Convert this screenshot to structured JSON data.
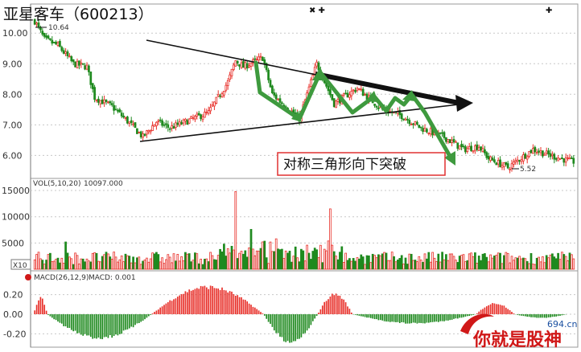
{
  "title": "亚星客车（600213）",
  "colors": {
    "up": "#e8302a",
    "down": "#1f8a1f",
    "accent_arrow": "#3e9a3e",
    "annotation_border": "#e03030",
    "brand_red": "#d01818"
  },
  "price_panel": {
    "yticks": [
      "10.00",
      "9.00",
      "8.00",
      "7.00",
      "6.00"
    ],
    "high_label": "10.64",
    "low_label": "5.52"
  },
  "volume_panel": {
    "header": "VOL(5,10,20)",
    "header_value": "10097.000",
    "yticks": [
      "15000",
      "10000",
      "5000"
    ],
    "unit_label": "X10"
  },
  "macd_panel": {
    "header": "MACD(26,12,9)",
    "header_value": "MACD: 0.001",
    "yticks": [
      "0.20",
      "0.00",
      "-0.20"
    ]
  },
  "annotation": {
    "text": "对称三角形向下突破"
  },
  "watermark": {
    "text": "你就是股神",
    "domain": "694.cn"
  },
  "chart_data": [
    {
      "type": "candlestick",
      "title": "亚星客车（600213）",
      "ylim": [
        5.3,
        10.9
      ],
      "y_ticks": [
        10.0,
        9.0,
        8.0,
        7.0,
        6.0
      ],
      "annotations": [
        {
          "text": "10.64",
          "point": [
            2,
            10.64
          ]
        },
        {
          "text": "5.52",
          "point": [
            173,
            5.52
          ]
        },
        {
          "text": "对称三角形向下突破"
        }
      ],
      "close_points": [
        [
          0,
          10.4
        ],
        [
          5,
          9.8
        ],
        [
          12,
          9.6
        ],
        [
          20,
          9.0
        ],
        [
          27,
          8.9
        ],
        [
          31,
          7.9
        ],
        [
          40,
          7.6
        ],
        [
          50,
          7.0
        ],
        [
          56,
          6.6
        ],
        [
          63,
          7.1
        ],
        [
          70,
          6.9
        ],
        [
          78,
          7.1
        ],
        [
          90,
          7.4
        ],
        [
          100,
          8.4
        ],
        [
          104,
          9.1
        ],
        [
          108,
          8.9
        ],
        [
          118,
          9.2
        ],
        [
          123,
          8.0
        ],
        [
          137,
          7.2
        ],
        [
          146,
          9.0
        ],
        [
          155,
          7.7
        ],
        [
          167,
          8.2
        ],
        [
          180,
          7.5
        ],
        [
          190,
          7.3
        ],
        [
          200,
          6.9
        ],
        [
          212,
          6.6
        ],
        [
          222,
          6.2
        ],
        [
          230,
          6.3
        ],
        [
          235,
          5.9
        ],
        [
          245,
          5.6
        ],
        [
          258,
          6.2
        ],
        [
          267,
          6.0
        ],
        [
          278,
          5.8
        ]
      ]
    },
    {
      "type": "bar",
      "title": "VOL(5,10,20)",
      "ylim": [
        0,
        17000
      ],
      "y_ticks": [
        15000,
        10000,
        5000
      ],
      "peaks": [
        {
          "x": 104,
          "value": 14800
        },
        {
          "x": 153,
          "value": 11500
        },
        {
          "x": 112,
          "value": 7600
        },
        {
          "x": 16,
          "value": 5200
        }
      ]
    },
    {
      "type": "bar",
      "title": "MACD(26,12,9)",
      "ylim": [
        -0.32,
        0.32
      ],
      "y_ticks": [
        0.2,
        0.0,
        -0.2
      ],
      "segments": [
        {
          "from": 0,
          "to": 6,
          "peak": 0.18
        },
        {
          "from": 7,
          "to": 60,
          "peak": -0.26
        },
        {
          "from": 61,
          "to": 118,
          "peak": 0.3
        },
        {
          "from": 119,
          "to": 146,
          "peak": -0.3
        },
        {
          "from": 147,
          "to": 164,
          "peak": 0.22
        },
        {
          "from": 165,
          "to": 228,
          "peak": -0.1
        },
        {
          "from": 229,
          "to": 248,
          "peak": 0.12
        },
        {
          "from": 249,
          "to": 275,
          "peak": -0.04
        }
      ]
    }
  ]
}
